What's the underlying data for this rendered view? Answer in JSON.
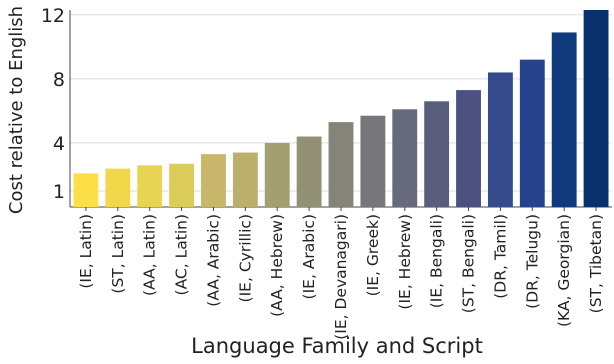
{
  "chart_data": {
    "type": "bar",
    "title": "",
    "xlabel": "Language Family and Script",
    "ylabel": "Cost relative to English",
    "ylim": [
      0,
      12.3
    ],
    "yticks": [
      1,
      4,
      8,
      12
    ],
    "grid": true,
    "legend": "none",
    "categories": [
      "(IE, Latin)",
      "(ST, Latin)",
      "(AA, Latin)",
      "(AC, Latin)",
      "(AA, Arabic)",
      "(IE, Cyrillic)",
      "(AA, Hebrew)",
      "(IE, Arabic)",
      "(IE, Devanagari)",
      "(IE, Greek)",
      "(IE, Hebrew)",
      "(IE, Bengali)",
      "(ST, Bengali)",
      "(DR, Tamil)",
      "(DR, Telugu)",
      "(KA, Georgian)",
      "(ST, Tibetan)"
    ],
    "values": [
      2.1,
      2.4,
      2.6,
      2.7,
      3.3,
      3.4,
      4.0,
      4.4,
      5.3,
      5.7,
      6.1,
      6.6,
      7.3,
      8.4,
      9.2,
      10.9,
      13.1
    ],
    "colors": [
      "#fde047",
      "#f0d84a",
      "#e7d453",
      "#dccd5a",
      "#c8b66a",
      "#bcae6b",
      "#a39f70",
      "#929174",
      "#858478",
      "#77767b",
      "#67697d",
      "#5a5e7e",
      "#4b5282",
      "#344a8a",
      "#24438c",
      "#103a7e",
      "#08306b"
    ]
  }
}
